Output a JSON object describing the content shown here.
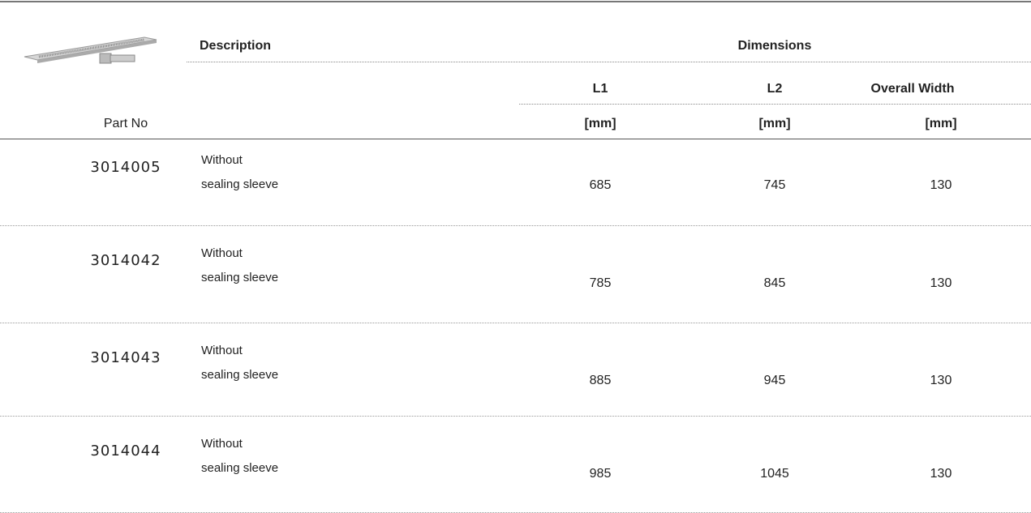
{
  "header": {
    "description": "Description",
    "dimensions": "Dimensions",
    "part_no": "Part No",
    "columns": [
      {
        "name": "L1",
        "unit": "[mm]"
      },
      {
        "name": "L2",
        "unit": "[mm]"
      },
      {
        "name": "Overall Width",
        "unit": "[mm]"
      }
    ]
  },
  "rows": [
    {
      "part_no": "3014005",
      "description": [
        "Without",
        "sealing sleeve"
      ],
      "dimensions": [
        685,
        745,
        130
      ]
    },
    {
      "part_no": "3014042",
      "description": [
        "Without",
        "sealing sleeve"
      ],
      "dimensions": [
        785,
        845,
        130
      ]
    },
    {
      "part_no": "3014043",
      "description": [
        "Without",
        "sealing sleeve"
      ],
      "dimensions": [
        885,
        945,
        130
      ]
    },
    {
      "part_no": "3014044",
      "description": [
        "Without",
        "sealing sleeve"
      ],
      "dimensions": [
        985,
        1045,
        130
      ]
    }
  ]
}
